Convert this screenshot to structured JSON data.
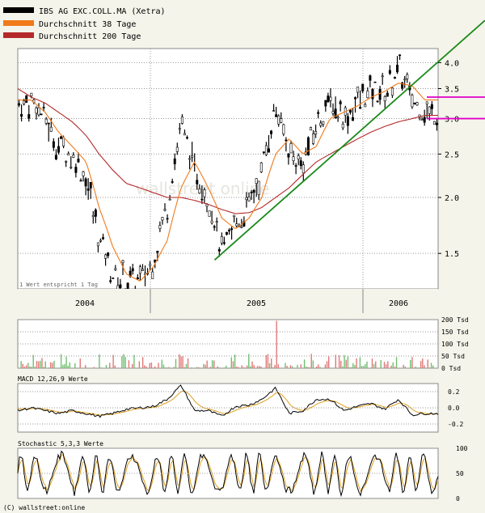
{
  "legend": {
    "items": [
      {
        "label": "IBS AG EXC.COLL.MA (Xetra)",
        "color": "#000000"
      },
      {
        "label": "Durchschnitt 38 Tage",
        "color": "#f07a1a"
      },
      {
        "label": "Durchschnitt 200 Tage",
        "color": "#b42a2a"
      }
    ]
  },
  "watermark": "wallstreet online",
  "note_text": "1 Wert entspricht 1 Tag",
  "copyright": "(C) wallstreet:online",
  "colors": {
    "price": "#000000",
    "ma38": "#f07a1a",
    "ma200": "#b42a2a",
    "trendline": "#1a8a1a",
    "hline": "#e000c8",
    "vol_up": "#6fbf6f",
    "vol_down": "#e07878",
    "background": "#f4f4ea",
    "plot_bg": "#ffffff",
    "grid": "#999999"
  },
  "chart_data": [
    {
      "type": "line",
      "panel": "price",
      "title": "IBS AG EXC.COLL.MA (Xetra)",
      "y_scale": "log",
      "ylim": [
        1.25,
        4.3
      ],
      "y_ticks": [
        "4.0",
        "3.5",
        "3.0",
        "2.5",
        "2.0",
        "1.5"
      ],
      "x_labels": [
        "2004",
        "2005",
        "2006"
      ],
      "series": [
        {
          "name": "IBS AG EXC.COLL.MA (Xetra)",
          "x": [
            "2003-09-01",
            "2003-10-01",
            "2003-11-01",
            "2003-12-01",
            "2004-01-01",
            "2004-02-01",
            "2004-03-01",
            "2004-04-01",
            "2004-05-01",
            "2004-06-01",
            "2004-07-01",
            "2004-08-01",
            "2004-09-01",
            "2004-10-01",
            "2004-11-01",
            "2004-12-01",
            "2005-01-01",
            "2005-02-01",
            "2005-03-01",
            "2005-04-01",
            "2005-05-01",
            "2005-06-01",
            "2005-07-01",
            "2005-08-01",
            "2005-09-01",
            "2005-10-01",
            "2005-11-01",
            "2005-12-01",
            "2006-01-01",
            "2006-02-01",
            "2006-03-01"
          ],
          "values": [
            3.2,
            3.3,
            3.0,
            2.6,
            2.5,
            2.2,
            1.6,
            1.35,
            1.3,
            1.3,
            1.45,
            1.9,
            2.9,
            2.3,
            2.0,
            1.5,
            1.75,
            1.9,
            2.3,
            3.2,
            2.5,
            2.4,
            2.9,
            3.3,
            3.0,
            3.25,
            3.5,
            3.4,
            3.9,
            3.3,
            3.1
          ]
        },
        {
          "name": "Durchschnitt 38 Tage",
          "x": [
            "2003-09-01",
            "2003-10-01",
            "2003-11-01",
            "2003-12-01",
            "2004-01-01",
            "2004-02-01",
            "2004-03-01",
            "2004-04-01",
            "2004-05-01",
            "2004-06-01",
            "2004-07-01",
            "2004-08-01",
            "2004-09-01",
            "2004-10-01",
            "2004-11-01",
            "2004-12-01",
            "2005-01-01",
            "2005-02-01",
            "2005-03-01",
            "2005-04-01",
            "2005-05-01",
            "2005-06-01",
            "2005-07-01",
            "2005-08-01",
            "2005-09-01",
            "2005-10-01",
            "2005-11-01",
            "2005-12-01",
            "2006-01-01",
            "2006-02-01",
            "2006-03-01"
          ],
          "values": [
            3.3,
            3.3,
            3.1,
            2.8,
            2.6,
            2.4,
            1.9,
            1.55,
            1.35,
            1.3,
            1.4,
            1.6,
            2.1,
            2.4,
            2.1,
            1.8,
            1.7,
            1.8,
            2.0,
            2.5,
            2.7,
            2.5,
            2.6,
            3.0,
            3.1,
            3.2,
            3.35,
            3.45,
            3.6,
            3.55,
            3.3
          ]
        },
        {
          "name": "Durchschnitt 200 Tage",
          "x": [
            "2003-09-01",
            "2003-10-01",
            "2003-11-01",
            "2003-12-01",
            "2004-01-01",
            "2004-02-01",
            "2004-03-01",
            "2004-04-01",
            "2004-05-01",
            "2004-06-01",
            "2004-07-01",
            "2004-08-01",
            "2004-09-01",
            "2004-10-01",
            "2004-11-01",
            "2004-12-01",
            "2005-01-01",
            "2005-02-01",
            "2005-03-01",
            "2005-04-01",
            "2005-05-01",
            "2005-06-01",
            "2005-07-01",
            "2005-08-01",
            "2005-09-01",
            "2005-10-01",
            "2005-11-01",
            "2005-12-01",
            "2006-01-01",
            "2006-02-01",
            "2006-03-01"
          ],
          "values": [
            3.5,
            3.35,
            3.25,
            3.1,
            2.95,
            2.75,
            2.5,
            2.3,
            2.15,
            2.1,
            2.05,
            2.0,
            2.0,
            1.97,
            1.93,
            1.88,
            1.84,
            1.85,
            1.9,
            2.0,
            2.1,
            2.25,
            2.4,
            2.5,
            2.6,
            2.7,
            2.8,
            2.88,
            2.95,
            3.0,
            3.05
          ]
        }
      ],
      "trendline": {
        "x": [
          "2004-11-15",
          "2006-03-31"
        ],
        "values": [
          1.45,
          4.15
        ]
      },
      "hlines": [
        3.35,
        3.0
      ]
    },
    {
      "type": "bar",
      "panel": "volume",
      "y_ticks": [
        "200 Tsd",
        "150 Tsd",
        "100 Tsd",
        "50 Tsd",
        "0 Tsd"
      ],
      "ylim": [
        0,
        200
      ],
      "peak_value_tsd": 195
    },
    {
      "type": "line",
      "panel": "macd",
      "title": "MACD 12,26,9 Werte",
      "y_ticks": [
        "0.2",
        "0.0",
        "-0.2"
      ],
      "ylim": [
        -0.3,
        0.3
      ]
    },
    {
      "type": "line",
      "panel": "stochastic",
      "title": "Stochastic 5,3,3 Werte",
      "y_ticks": [
        "100",
        "50",
        "0"
      ],
      "ylim": [
        0,
        100
      ]
    }
  ]
}
